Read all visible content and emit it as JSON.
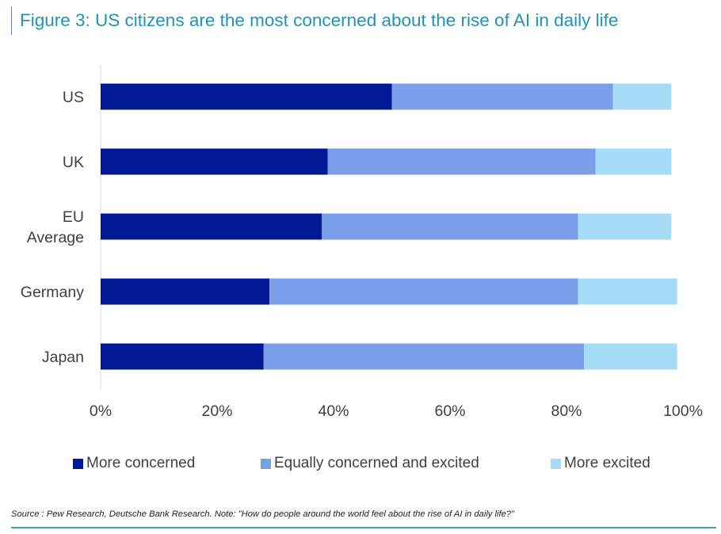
{
  "title": "Figure 3: US citizens are the most concerned about the rise of AI in daily life",
  "source": "Source : Pew Research, Deutsche Bank Research. Note: \"How do people around the world feel about the rise of AI in daily life?\"",
  "colors": {
    "more_concerned": "#021996",
    "equally": "#7b9ee8",
    "more_excited": "#a6dcf7",
    "title": "#1f93b8",
    "rule": "#3aa3c4"
  },
  "chart_data": {
    "type": "bar",
    "orientation": "horizontal",
    "stacked": true,
    "title": "Figure 3: US citizens are the most concerned about the rise of AI in daily life",
    "xlabel": "",
    "ylabel": "",
    "xlim": [
      0,
      100
    ],
    "x_ticks": [
      "0%",
      "20%",
      "40%",
      "60%",
      "80%",
      "100%"
    ],
    "grid": false,
    "legend_position": "bottom",
    "categories": [
      [
        "US"
      ],
      [
        "UK"
      ],
      [
        "EU",
        "Average"
      ],
      [
        "Germany"
      ],
      [
        "Japan"
      ]
    ],
    "series": [
      {
        "name": "More concerned",
        "values": [
          50,
          39,
          38,
          29,
          28
        ]
      },
      {
        "name": "Equally concerned and excited",
        "values": [
          38,
          46,
          44,
          53,
          55
        ]
      },
      {
        "name": "More excited",
        "values": [
          10,
          13,
          16,
          17,
          16
        ]
      }
    ]
  }
}
